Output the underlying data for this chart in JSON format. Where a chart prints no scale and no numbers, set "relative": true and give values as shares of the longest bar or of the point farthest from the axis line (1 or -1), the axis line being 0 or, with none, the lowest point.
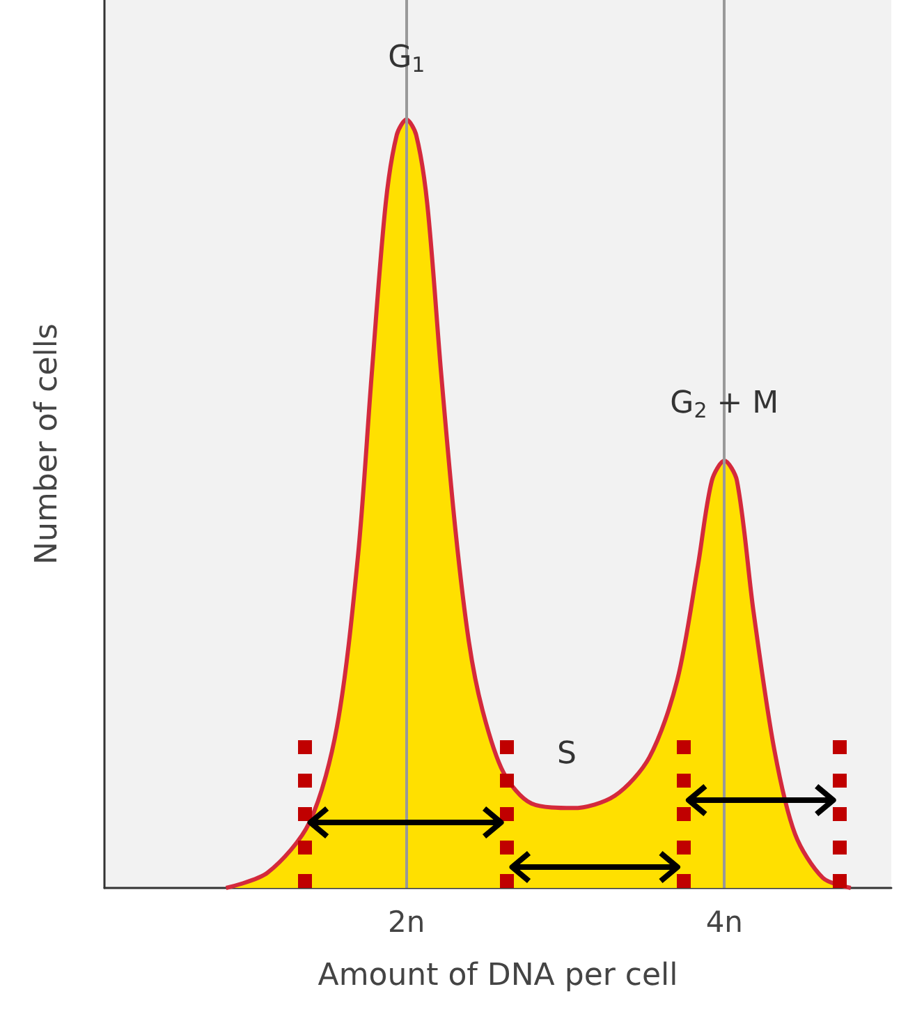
{
  "chart_data": {
    "type": "area",
    "xlabel": "Amount of DNA per cell",
    "ylabel": "Number of cells",
    "relative": true,
    "x": [
      0.865,
      1.127,
      1.389,
      1.563,
      1.694,
      1.782,
      1.869,
      1.939,
      2,
      2.061,
      2.131,
      2.218,
      2.306,
      2.393,
      2.48,
      2.611,
      2.786,
      3.048,
      3.31,
      3.528,
      3.703,
      3.834,
      3.921,
      4,
      4.079,
      4.183,
      4.314,
      4.445,
      4.62,
      4.795
    ],
    "series": [
      {
        "color": "#ffe000",
        "values": [
          0,
          0.02,
          0.085,
          0.21,
          0.43,
          0.67,
          0.89,
          0.98,
          1,
          0.98,
          0.89,
          0.67,
          0.47,
          0.32,
          0.23,
          0.15,
          0.11,
          0.104,
          0.12,
          0.17,
          0.27,
          0.42,
          0.53,
          0.556,
          0.53,
          0.36,
          0.18,
          0.07,
          0.013,
          0
        ]
      }
    ],
    "xlim": [
      0.1,
      5.05
    ],
    "xticks": [
      {
        "value": 2,
        "label": "2n"
      },
      {
        "value": 4,
        "label": "4n"
      }
    ],
    "grid": false,
    "marker": "none",
    "ref_lines": [
      {
        "axis": "x",
        "value": 2,
        "color": "#999999",
        "line_style": "solid"
      },
      {
        "axis": "x",
        "value": 4,
        "color": "#999999",
        "line_style": "solid"
      },
      {
        "axis": "x",
        "value": 1.36,
        "color": "#c00000",
        "line_style": "dotted"
      },
      {
        "axis": "x",
        "value": 2.63,
        "color": "#c00000",
        "line_style": "dotted"
      },
      {
        "axis": "x",
        "value": 3.74,
        "color": "#c00000",
        "line_style": "dotted"
      },
      {
        "axis": "x",
        "value": 4.72,
        "color": "#c00000",
        "line_style": "dotted"
      }
    ],
    "annotations": [
      {
        "text": "G$_{1}$",
        "x": 2,
        "y": 1.08
      },
      {
        "text": "G$_{2}$ + M",
        "x": 4,
        "y": 0.63
      },
      "S"
    ]
  }
}
